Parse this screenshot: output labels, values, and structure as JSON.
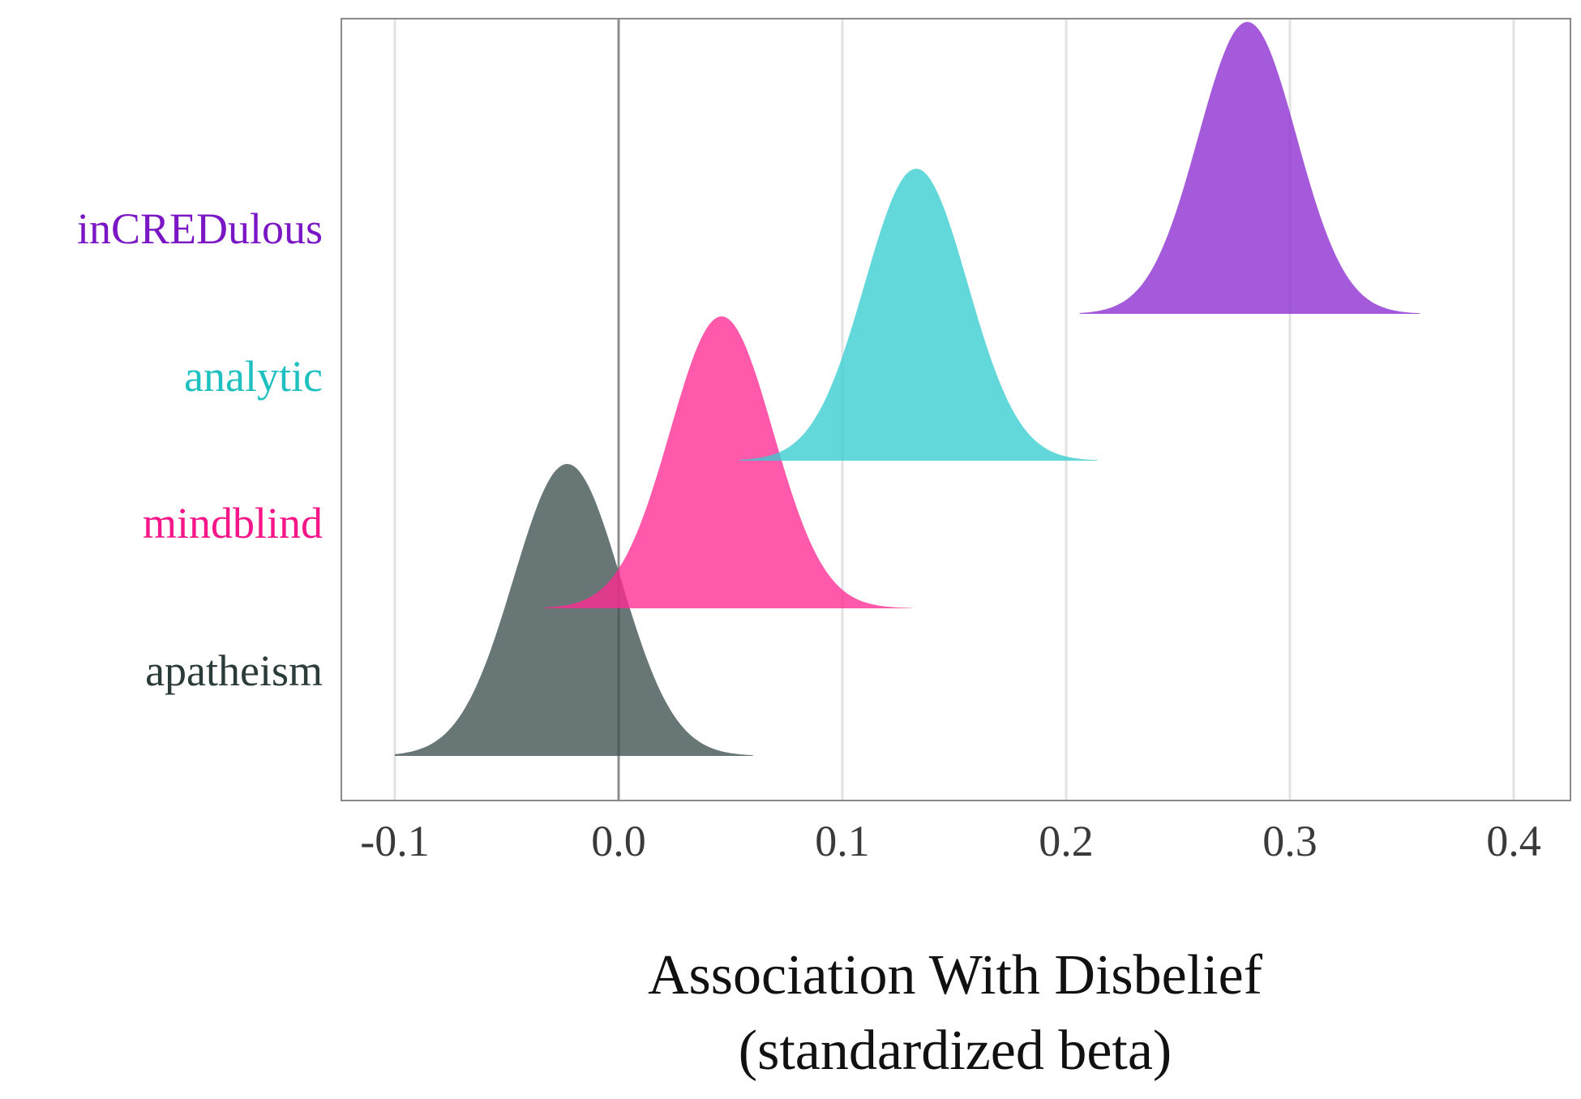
{
  "chart_data": {
    "type": "area",
    "subtype": "ridgeline-density",
    "title": "",
    "xlabel_line1": "Association With Disbelief",
    "xlabel_line2": "(standardized beta)",
    "ylabel": "",
    "xlim": [
      -0.125,
      0.425
    ],
    "xticks": [
      -0.1,
      0.0,
      0.1,
      0.2,
      0.3,
      0.4
    ],
    "xtick_labels": [
      "-0.1",
      "0.0",
      "0.1",
      "0.2",
      "0.3",
      "0.4"
    ],
    "reference_line_x": 0.0,
    "grid": "vertical",
    "legend": "none",
    "categories": [
      "inCREDulous",
      "analytic",
      "mindblind",
      "apatheism"
    ],
    "series": [
      {
        "name": "inCREDulous",
        "color": "#8A2BD0",
        "label_color": "#7B16C4",
        "mean": 0.281,
        "sd": 0.022,
        "min": 0.206,
        "max": 0.358
      },
      {
        "name": "analytic",
        "color": "#36CDD0",
        "label_color": "#1EC0C0",
        "mean": 0.133,
        "sd": 0.023,
        "min": 0.054,
        "max": 0.214
      },
      {
        "name": "mindblind",
        "color": "#FF2A93",
        "label_color": "#F5178A",
        "mean": 0.046,
        "sd": 0.023,
        "min": -0.033,
        "max": 0.131
      },
      {
        "name": "apatheism",
        "color": "#3D514F",
        "label_color": "#2B3B3A",
        "mean": -0.023,
        "sd": 0.024,
        "min": -0.1,
        "max": 0.06
      }
    ]
  }
}
